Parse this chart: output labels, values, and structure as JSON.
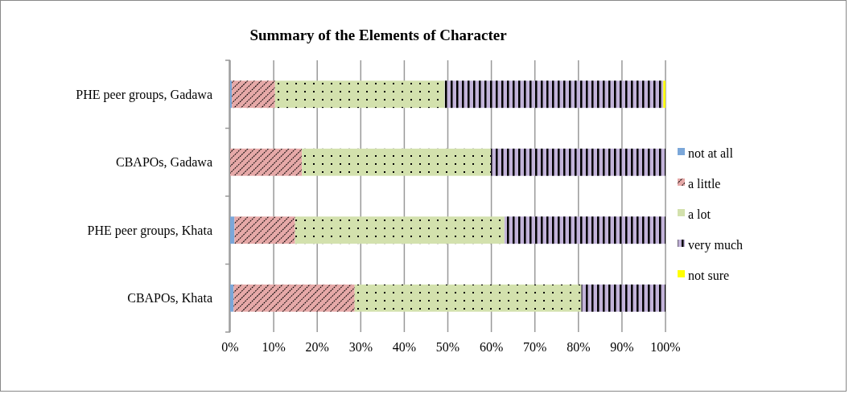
{
  "chart_data": {
    "type": "bar",
    "title": "Summary of the Elements of Character",
    "orientation": "horizontal",
    "stacked": true,
    "categories": [
      "PHE peer groups, Gadawa",
      "CBAPOs, Gadawa",
      "PHE peer groups, Khata",
      "CBAPOs, Khata"
    ],
    "series": [
      {
        "name": "not at all",
        "color": "#7ba7d9",
        "values": [
          0.4,
          0,
          1.0,
          0.8
        ]
      },
      {
        "name": "a little",
        "color": "#e6a9a8",
        "values": [
          9.9,
          16.5,
          13.9,
          27.8
        ]
      },
      {
        "name": "a lot",
        "color": "#d3e1ad",
        "values": [
          39.0,
          43.4,
          48.1,
          52.1
        ]
      },
      {
        "name": "very much",
        "color": "#c2b3d9",
        "values": [
          50.2,
          40.1,
          37.0,
          19.3
        ]
      },
      {
        "name": "not sure",
        "color": "#ffff00",
        "values": [
          0.5,
          0,
          0,
          0
        ]
      }
    ],
    "xlim": [
      0,
      100
    ],
    "xticks": [
      {
        "value": 0,
        "label": "0%"
      },
      {
        "value": 10,
        "label": "10%"
      },
      {
        "value": 20,
        "label": "20%"
      },
      {
        "value": 30,
        "label": "30%"
      },
      {
        "value": 40,
        "label": "40%"
      },
      {
        "value": 50,
        "label": "50%"
      },
      {
        "value": 60,
        "label": "60%"
      },
      {
        "value": 70,
        "label": "70%"
      },
      {
        "value": 80,
        "label": "80%"
      },
      {
        "value": 90,
        "label": "90%"
      },
      {
        "value": 100,
        "label": "100%"
      }
    ],
    "grid": "x",
    "legend": "right"
  }
}
